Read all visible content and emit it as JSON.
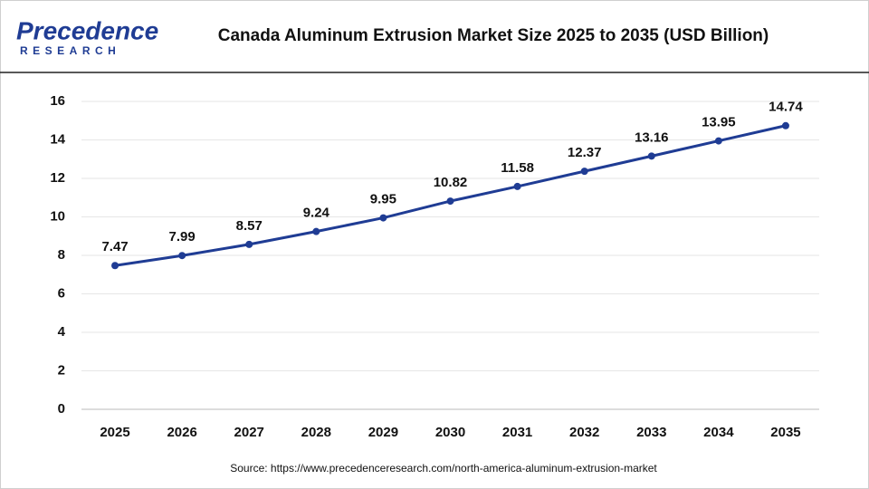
{
  "logo": {
    "name": "Precedence",
    "tagline": "RESEARCH"
  },
  "chart_data": {
    "type": "line",
    "title": "Canada Aluminum Extrusion Market Size 2025 to 2035 (USD Billion)",
    "source": "Source: https://www.precedenceresearch.com/north-america-aluminum-extrusion-market",
    "categories": [
      "2025",
      "2026",
      "2027",
      "2028",
      "2029",
      "2030",
      "2031",
      "2032",
      "2033",
      "2034",
      "2035"
    ],
    "values": [
      7.47,
      7.99,
      8.57,
      9.24,
      9.95,
      10.82,
      11.58,
      12.37,
      13.16,
      13.95,
      14.74
    ],
    "color": "#1f3c94",
    "ylim": [
      0,
      16
    ],
    "yticks": [
      0,
      2,
      4,
      6,
      8,
      10,
      12,
      14,
      16
    ],
    "grid": true
  }
}
